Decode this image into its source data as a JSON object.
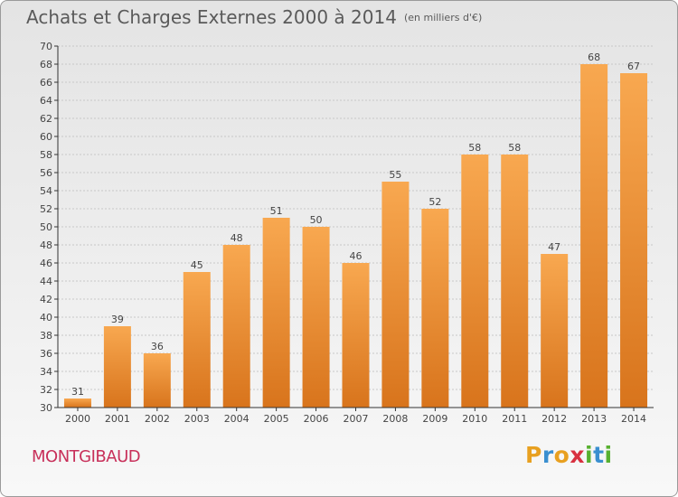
{
  "header": {
    "title": "Achats et Charges Externes 2000 à 2014",
    "subtitle": "(en milliers d'€)"
  },
  "footer": {
    "commune": "MONTGIBAUD",
    "brand_letters": [
      "P",
      "r",
      "o",
      "x",
      "i",
      "t",
      "i"
    ],
    "brand_colors": [
      "#e8a020",
      "#3a8fd0",
      "#e8a020",
      "#d83040",
      "#58b030",
      "#3a8fd0",
      "#58b030"
    ]
  },
  "colors": {
    "bar_top": "#f8a850",
    "bar_bottom": "#d8741c",
    "axis": "#333333",
    "grid": "#c8c8c8",
    "text": "#444444"
  },
  "chart_data": {
    "type": "bar",
    "categories": [
      "2000",
      "2001",
      "2002",
      "2003",
      "2004",
      "2005",
      "2006",
      "2007",
      "2008",
      "2009",
      "2010",
      "2011",
      "2012",
      "2013",
      "2014"
    ],
    "values": [
      31,
      39,
      36,
      45,
      48,
      51,
      50,
      46,
      55,
      52,
      58,
      58,
      47,
      68,
      67
    ],
    "data_labels": [
      "31",
      "39",
      "36",
      "45",
      "48",
      "51",
      "50",
      "46",
      "55",
      "52",
      "58",
      "58",
      "47",
      "68",
      "67"
    ],
    "ylim": [
      30,
      70
    ],
    "yticks": [
      "30",
      "32",
      "34",
      "36",
      "38",
      "40",
      "42",
      "44",
      "46",
      "48",
      "50",
      "52",
      "54",
      "56",
      "58",
      "60",
      "62",
      "64",
      "66",
      "68",
      "70"
    ],
    "title": "Achats et Charges Externes 2000 à 2014",
    "xlabel": "",
    "ylabel": "",
    "grid": true,
    "legend": "none"
  }
}
